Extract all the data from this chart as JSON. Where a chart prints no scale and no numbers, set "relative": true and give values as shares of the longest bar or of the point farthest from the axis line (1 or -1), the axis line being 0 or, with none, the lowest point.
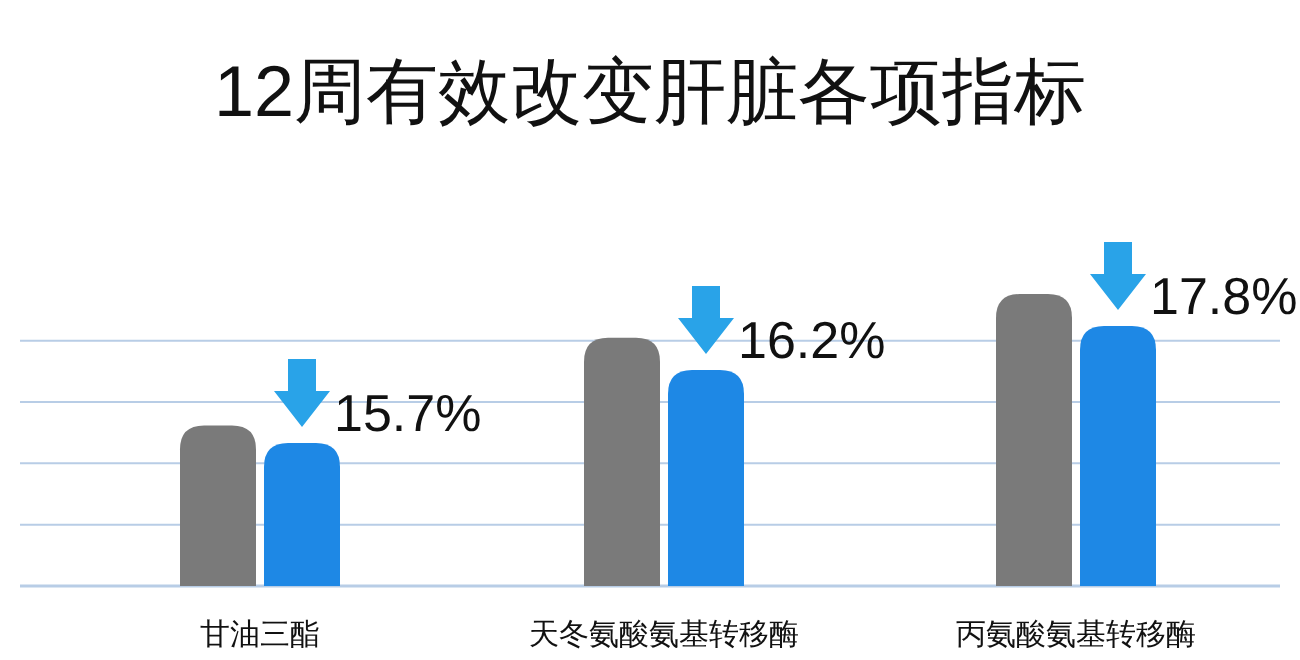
{
  "chart_data": {
    "type": "bar",
    "title": "12周有效改变肝脏各项指标",
    "relative": true,
    "ref_lines": [
      {
        "axis": "y",
        "value": 0.21,
        "color": "#b8cde6"
      },
      {
        "axis": "y",
        "value": 0.42,
        "color": "#b8cde6"
      },
      {
        "axis": "y",
        "value": 0.63,
        "color": "#b8cde6"
      },
      {
        "axis": "y",
        "value": 0.84,
        "color": "#b8cde6"
      }
    ],
    "categories": [
      "甘油三酯",
      "天冬氨酸氨基转移酶",
      "丙氨酸氨基转移酶"
    ],
    "series": [
      {
        "color": "#7a7a7a",
        "values": [
          0.55,
          0.85,
          1
        ]
      },
      {
        "color": "#1e88e5",
        "values": [
          0.49,
          0.74,
          0.89
        ]
      }
    ],
    "annotations": [
      {
        "text": "15.7%",
        "x": "甘油三酯",
        "y": 0.49
      },
      {
        "text": "16.2%",
        "x": "天冬氨酸氨基转移酶",
        "y": 0.74
      },
      {
        "text": "17.8%",
        "x": "丙氨酸氨基转移酶",
        "y": 0.89
      }
    ]
  }
}
